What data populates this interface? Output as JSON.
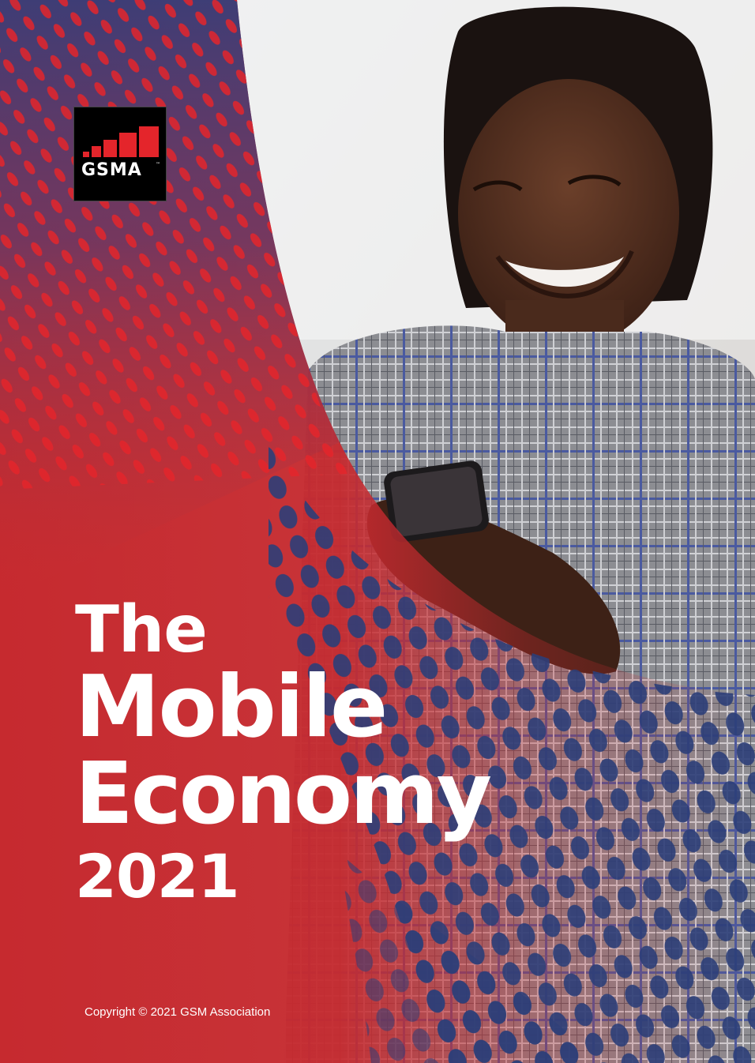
{
  "logo": {
    "text": "GSMA",
    "trademark": "™"
  },
  "title": {
    "line1": "The",
    "line2": "Mobile",
    "line3": "Economy",
    "line4": "2021"
  },
  "footer": {
    "copyright": "Copyright © 2021 GSM Association"
  },
  "colors": {
    "red": "#d42b2b",
    "navy": "#2c3e78",
    "white": "#ffffff",
    "logo_red": "#e4252b"
  }
}
